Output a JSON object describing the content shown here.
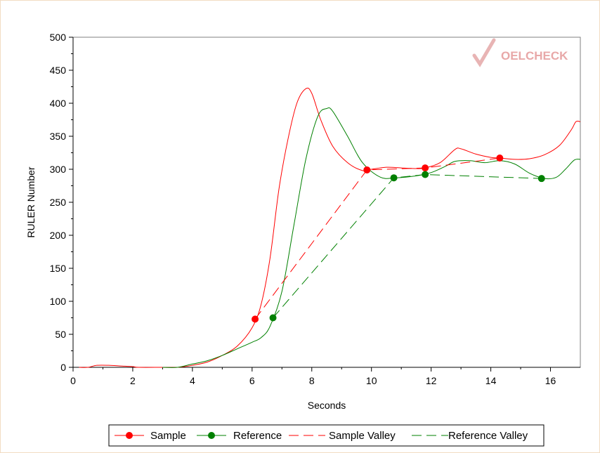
{
  "chart_data": {
    "type": "line",
    "title": "",
    "xlabel": "Seconds",
    "ylabel": "RULER Number",
    "xlim": [
      0,
      17
    ],
    "ylim": [
      0,
      500
    ],
    "x_ticks": [
      0,
      2,
      4,
      6,
      8,
      10,
      12,
      14,
      16
    ],
    "y_ticks": [
      0,
      50,
      100,
      150,
      200,
      250,
      300,
      350,
      400,
      450,
      500
    ],
    "grid": false,
    "legend_position": "bottom-center",
    "watermark": "OELCHECK",
    "series": [
      {
        "name": "Sample",
        "color": "#ff0000",
        "style": "solid",
        "points": [
          [
            0.2,
            0
          ],
          [
            0.5,
            0
          ],
          [
            0.8,
            3
          ],
          [
            1.2,
            3
          ],
          [
            1.6,
            2
          ],
          [
            2.0,
            1
          ],
          [
            2.2,
            0
          ],
          [
            3.0,
            0
          ],
          [
            3.5,
            0
          ],
          [
            4.0,
            3
          ],
          [
            4.5,
            8
          ],
          [
            5.0,
            18
          ],
          [
            5.5,
            32
          ],
          [
            6.0,
            60
          ],
          [
            6.3,
            95
          ],
          [
            6.6,
            165
          ],
          [
            6.9,
            270
          ],
          [
            7.2,
            345
          ],
          [
            7.5,
            400
          ],
          [
            7.8,
            422
          ],
          [
            8.0,
            415
          ],
          [
            8.3,
            375
          ],
          [
            8.7,
            335
          ],
          [
            9.2,
            310
          ],
          [
            9.7,
            298
          ],
          [
            10.0,
            300
          ],
          [
            10.5,
            303
          ],
          [
            11.0,
            302
          ],
          [
            11.5,
            301
          ],
          [
            11.8,
            302
          ],
          [
            12.3,
            310
          ],
          [
            12.8,
            330
          ],
          [
            13.0,
            331
          ],
          [
            13.5,
            323
          ],
          [
            14.0,
            318
          ],
          [
            14.3,
            317
          ],
          [
            14.8,
            315
          ],
          [
            15.3,
            316
          ],
          [
            15.8,
            322
          ],
          [
            16.3,
            336
          ],
          [
            16.7,
            360
          ],
          [
            16.85,
            372
          ],
          [
            17.0,
            372
          ]
        ]
      },
      {
        "name": "Reference",
        "color": "#008000",
        "style": "solid",
        "points": [
          [
            3.0,
            0
          ],
          [
            3.5,
            0
          ],
          [
            4.0,
            5
          ],
          [
            4.5,
            10
          ],
          [
            5.0,
            18
          ],
          [
            5.5,
            28
          ],
          [
            6.0,
            38
          ],
          [
            6.3,
            45
          ],
          [
            6.6,
            62
          ],
          [
            7.0,
            115
          ],
          [
            7.4,
            215
          ],
          [
            7.8,
            315
          ],
          [
            8.2,
            380
          ],
          [
            8.5,
            392
          ],
          [
            8.7,
            388
          ],
          [
            9.2,
            350
          ],
          [
            9.7,
            310
          ],
          [
            10.3,
            288
          ],
          [
            10.8,
            287
          ],
          [
            11.5,
            290
          ],
          [
            12.0,
            295
          ],
          [
            12.5,
            305
          ],
          [
            12.8,
            312
          ],
          [
            13.3,
            313
          ],
          [
            13.8,
            310
          ],
          [
            14.3,
            313
          ],
          [
            14.8,
            308
          ],
          [
            15.3,
            294
          ],
          [
            15.8,
            286
          ],
          [
            16.2,
            288
          ],
          [
            16.5,
            300
          ],
          [
            16.8,
            314
          ],
          [
            17.0,
            315
          ]
        ]
      },
      {
        "name": "Sample Valley",
        "color": "#ff0000",
        "style": "dashed",
        "points": [
          [
            6.1,
            73
          ],
          [
            9.85,
            299
          ],
          [
            11.8,
            302
          ],
          [
            14.3,
            317
          ]
        ]
      },
      {
        "name": "Reference Valley",
        "color": "#008000",
        "style": "dashed",
        "points": [
          [
            6.7,
            75
          ],
          [
            10.75,
            287
          ],
          [
            11.8,
            292
          ],
          [
            15.7,
            286
          ]
        ]
      }
    ],
    "markers": [
      {
        "series": "Sample",
        "color": "#ff0000",
        "points": [
          [
            6.1,
            73
          ],
          [
            9.85,
            299
          ],
          [
            11.8,
            302
          ],
          [
            14.3,
            317
          ]
        ]
      },
      {
        "series": "Reference",
        "color": "#008000",
        "points": [
          [
            6.7,
            75
          ],
          [
            10.75,
            287
          ],
          [
            11.8,
            292
          ],
          [
            15.7,
            286
          ]
        ]
      }
    ]
  }
}
